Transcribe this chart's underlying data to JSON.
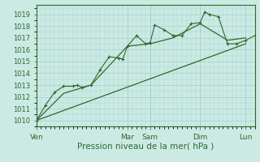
{
  "title": "",
  "xlabel": "Pression niveau de la mer( hPa )",
  "ylabel": "",
  "bg_color": "#cceae4",
  "grid_color": "#aad4cc",
  "line_color": "#2d6a2d",
  "xlim": [
    0,
    24
  ],
  "ylim": [
    1009.5,
    1019.8
  ],
  "yticks": [
    1010,
    1011,
    1012,
    1013,
    1014,
    1015,
    1016,
    1017,
    1018,
    1019
  ],
  "xtick_labels": [
    "Ven",
    "Mar",
    "Sam",
    "Dim",
    "Lun"
  ],
  "xtick_positions": [
    0,
    10,
    12.5,
    18,
    23
  ],
  "line1_x": [
    0,
    1,
    2,
    3,
    4,
    4.5,
    5,
    6,
    7,
    8,
    9,
    9.5,
    10,
    11,
    12,
    12.5,
    13,
    14,
    15,
    16,
    17,
    18,
    18.5,
    19,
    20,
    21,
    22,
    23,
    24
  ],
  "line1_y": [
    1010.0,
    1011.3,
    1012.4,
    1012.9,
    1012.9,
    1013.0,
    1012.8,
    1013.0,
    1014.3,
    1015.4,
    1015.3,
    1015.2,
    1016.3,
    1017.2,
    1016.5,
    1016.6,
    1018.1,
    1017.7,
    1017.2,
    1017.2,
    1018.2,
    1018.3,
    1019.2,
    1019.0,
    1018.8,
    1016.5,
    1016.5,
    1016.8,
    1017.2
  ],
  "line2_x": [
    0,
    3,
    6,
    10,
    12.5,
    15,
    18,
    21,
    23
  ],
  "line2_y": [
    1010.0,
    1012.3,
    1013.0,
    1016.3,
    1016.5,
    1017.0,
    1018.2,
    1016.8,
    1017.0
  ],
  "line3_x": [
    0,
    23
  ],
  "line3_y": [
    1010.0,
    1016.5
  ]
}
